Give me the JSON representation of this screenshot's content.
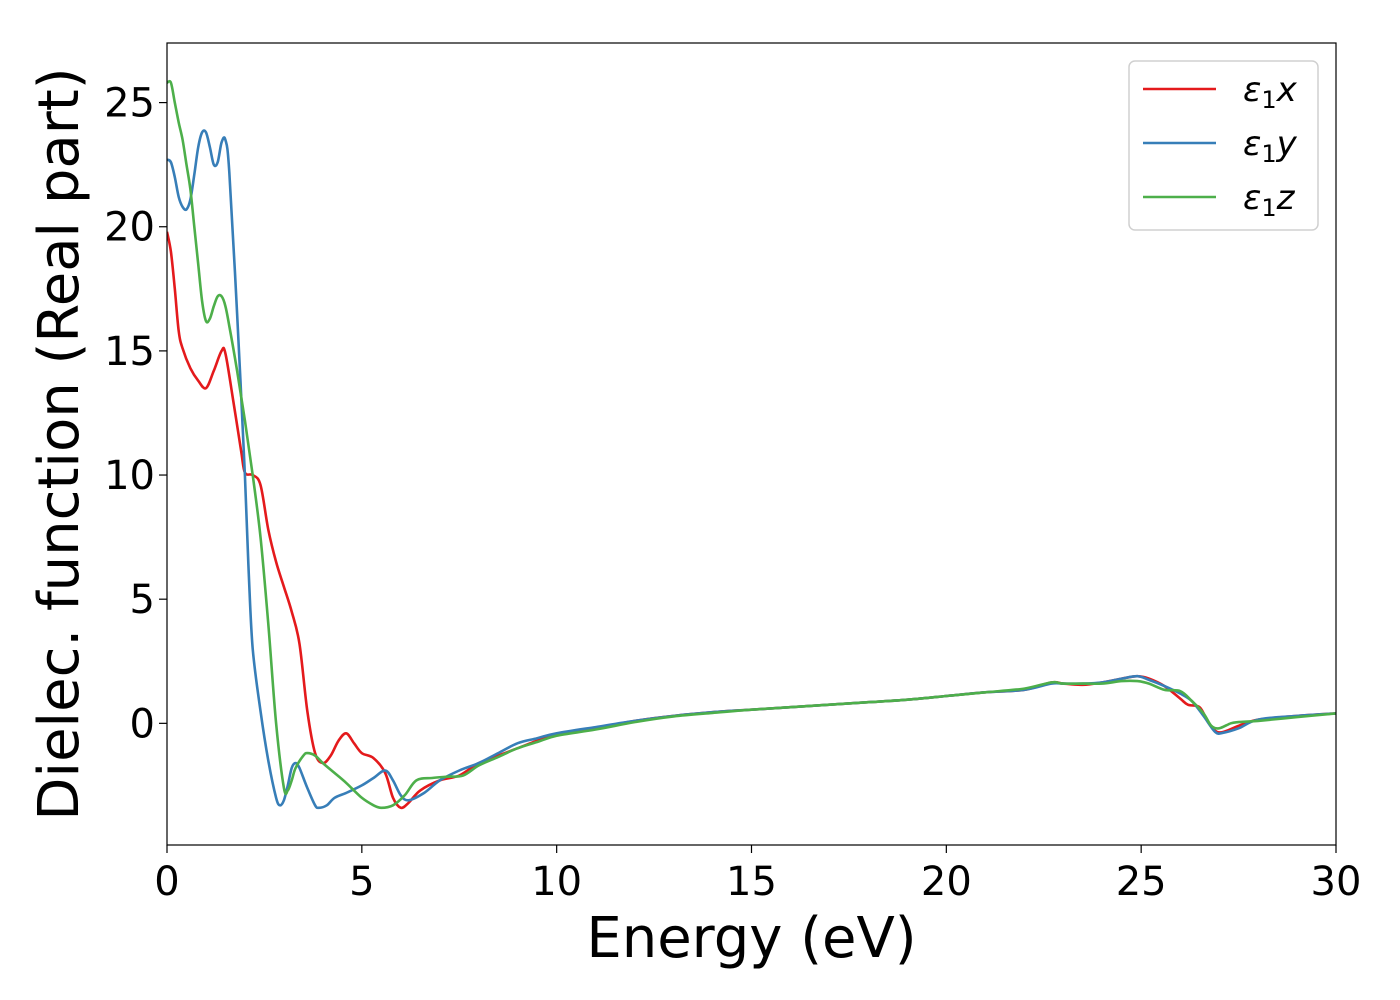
{
  "chart_data": {
    "type": "line",
    "xlabel": "Energy (eV)",
    "ylabel": "Dielec. function (Real part)",
    "xlim": [
      0,
      30
    ],
    "ylim": [
      -4.9,
      27.4
    ],
    "xticks": [
      "0",
      "5",
      "10",
      "15",
      "20",
      "25",
      "30"
    ],
    "yticks": [
      "0",
      "5",
      "10",
      "15",
      "20",
      "25"
    ],
    "grid": false,
    "legend_position": "top-right",
    "series": [
      {
        "name": "ε1x",
        "legend": {
          "base": "ε",
          "sub": "1",
          "suffix": "x"
        },
        "color": "#e41a1c",
        "points": [
          [
            0,
            19.8
          ],
          [
            0.1,
            19.0
          ],
          [
            0.2,
            17.5
          ],
          [
            0.3,
            15.8
          ],
          [
            0.4,
            15.1
          ],
          [
            0.6,
            14.3
          ],
          [
            0.8,
            13.8
          ],
          [
            1.0,
            13.5
          ],
          [
            1.2,
            14.2
          ],
          [
            1.4,
            15.0
          ],
          [
            1.5,
            14.9
          ],
          [
            1.7,
            13.0
          ],
          [
            1.9,
            11.0
          ],
          [
            2.0,
            10.1
          ],
          [
            2.2,
            10.0
          ],
          [
            2.4,
            9.6
          ],
          [
            2.6,
            7.8
          ],
          [
            2.8,
            6.5
          ],
          [
            3.0,
            5.5
          ],
          [
            3.2,
            4.5
          ],
          [
            3.4,
            3.2
          ],
          [
            3.6,
            0.5
          ],
          [
            3.8,
            -1.2
          ],
          [
            4.0,
            -1.6
          ],
          [
            4.2,
            -1.3
          ],
          [
            4.4,
            -0.7
          ],
          [
            4.6,
            -0.4
          ],
          [
            4.8,
            -0.8
          ],
          [
            5.0,
            -1.2
          ],
          [
            5.3,
            -1.4
          ],
          [
            5.6,
            -2.0
          ],
          [
            5.8,
            -3.0
          ],
          [
            6.0,
            -3.4
          ],
          [
            6.2,
            -3.2
          ],
          [
            6.5,
            -2.7
          ],
          [
            7.0,
            -2.3
          ],
          [
            7.5,
            -2.1
          ],
          [
            8.0,
            -1.6
          ],
          [
            8.5,
            -1.3
          ],
          [
            9.0,
            -1.0
          ],
          [
            9.5,
            -0.7
          ],
          [
            10.0,
            -0.45
          ],
          [
            11.0,
            -0.2
          ],
          [
            12.0,
            0.1
          ],
          [
            13.0,
            0.3
          ],
          [
            14.0,
            0.45
          ],
          [
            15.0,
            0.55
          ],
          [
            16.0,
            0.65
          ],
          [
            17.0,
            0.75
          ],
          [
            18.0,
            0.85
          ],
          [
            19.0,
            0.95
          ],
          [
            20.0,
            1.1
          ],
          [
            21.0,
            1.25
          ],
          [
            22.0,
            1.35
          ],
          [
            22.7,
            1.65
          ],
          [
            23.0,
            1.6
          ],
          [
            23.5,
            1.55
          ],
          [
            24.0,
            1.65
          ],
          [
            24.5,
            1.8
          ],
          [
            24.9,
            1.9
          ],
          [
            25.2,
            1.8
          ],
          [
            25.6,
            1.5
          ],
          [
            26.0,
            1.0
          ],
          [
            26.2,
            0.75
          ],
          [
            26.5,
            0.65
          ],
          [
            26.7,
            0.1
          ],
          [
            26.9,
            -0.3
          ],
          [
            27.1,
            -0.35
          ],
          [
            27.5,
            -0.1
          ],
          [
            28.0,
            0.15
          ],
          [
            29.0,
            0.3
          ],
          [
            30.0,
            0.4
          ]
        ]
      },
      {
        "name": "ε1y",
        "legend": {
          "base": "ε",
          "sub": "1",
          "suffix": "y"
        },
        "color": "#377eb8",
        "points": [
          [
            0,
            22.7
          ],
          [
            0.1,
            22.6
          ],
          [
            0.2,
            22.0
          ],
          [
            0.3,
            21.2
          ],
          [
            0.4,
            20.8
          ],
          [
            0.5,
            20.7
          ],
          [
            0.6,
            21.1
          ],
          [
            0.7,
            22.1
          ],
          [
            0.8,
            23.2
          ],
          [
            0.9,
            23.8
          ],
          [
            1.0,
            23.8
          ],
          [
            1.1,
            23.2
          ],
          [
            1.2,
            22.5
          ],
          [
            1.3,
            22.6
          ],
          [
            1.4,
            23.4
          ],
          [
            1.5,
            23.5
          ],
          [
            1.6,
            22.2
          ],
          [
            1.8,
            16.5
          ],
          [
            2.0,
            10.0
          ],
          [
            2.1,
            6.0
          ],
          [
            2.2,
            3.0
          ],
          [
            2.4,
            0.5
          ],
          [
            2.6,
            -1.5
          ],
          [
            2.8,
            -3.0
          ],
          [
            2.9,
            -3.3
          ],
          [
            3.0,
            -3.1
          ],
          [
            3.1,
            -2.5
          ],
          [
            3.2,
            -1.8
          ],
          [
            3.3,
            -1.6
          ],
          [
            3.4,
            -1.8
          ],
          [
            3.6,
            -2.6
          ],
          [
            3.8,
            -3.3
          ],
          [
            3.9,
            -3.4
          ],
          [
            4.1,
            -3.3
          ],
          [
            4.3,
            -3.0
          ],
          [
            4.6,
            -2.8
          ],
          [
            5.0,
            -2.5
          ],
          [
            5.3,
            -2.2
          ],
          [
            5.6,
            -1.9
          ],
          [
            5.8,
            -2.3
          ],
          [
            6.0,
            -2.9
          ],
          [
            6.2,
            -3.1
          ],
          [
            6.6,
            -2.8
          ],
          [
            7.0,
            -2.3
          ],
          [
            7.5,
            -1.9
          ],
          [
            8.0,
            -1.6
          ],
          [
            8.5,
            -1.2
          ],
          [
            9.0,
            -0.8
          ],
          [
            9.5,
            -0.6
          ],
          [
            10.0,
            -0.4
          ],
          [
            11.0,
            -0.15
          ],
          [
            12.0,
            0.1
          ],
          [
            13.0,
            0.3
          ],
          [
            14.0,
            0.45
          ],
          [
            15.0,
            0.55
          ],
          [
            16.0,
            0.65
          ],
          [
            17.0,
            0.75
          ],
          [
            18.0,
            0.85
          ],
          [
            19.0,
            0.95
          ],
          [
            20.0,
            1.1
          ],
          [
            21.0,
            1.25
          ],
          [
            22.0,
            1.35
          ],
          [
            22.7,
            1.6
          ],
          [
            23.0,
            1.6
          ],
          [
            23.5,
            1.6
          ],
          [
            24.0,
            1.65
          ],
          [
            24.5,
            1.8
          ],
          [
            24.9,
            1.9
          ],
          [
            25.2,
            1.75
          ],
          [
            25.6,
            1.5
          ],
          [
            26.0,
            1.2
          ],
          [
            26.3,
            0.9
          ],
          [
            26.6,
            0.3
          ],
          [
            26.9,
            -0.35
          ],
          [
            27.1,
            -0.38
          ],
          [
            27.5,
            -0.2
          ],
          [
            28.0,
            0.15
          ],
          [
            29.0,
            0.3
          ],
          [
            30.0,
            0.4
          ]
        ]
      },
      {
        "name": "ε1z",
        "legend": {
          "base": "ε",
          "sub": "1",
          "suffix": "z"
        },
        "color": "#4daf4a",
        "points": [
          [
            0,
            25.8
          ],
          [
            0.1,
            25.8
          ],
          [
            0.2,
            25.0
          ],
          [
            0.3,
            24.2
          ],
          [
            0.4,
            23.5
          ],
          [
            0.5,
            22.5
          ],
          [
            0.6,
            21.5
          ],
          [
            0.7,
            20.0
          ],
          [
            0.8,
            18.5
          ],
          [
            0.9,
            17.0
          ],
          [
            1.0,
            16.2
          ],
          [
            1.1,
            16.3
          ],
          [
            1.2,
            16.8
          ],
          [
            1.3,
            17.2
          ],
          [
            1.4,
            17.2
          ],
          [
            1.5,
            16.8
          ],
          [
            1.6,
            16.0
          ],
          [
            1.8,
            14.2
          ],
          [
            2.0,
            12.2
          ],
          [
            2.2,
            10.0
          ],
          [
            2.4,
            7.5
          ],
          [
            2.6,
            4.0
          ],
          [
            2.8,
            0.0
          ],
          [
            3.0,
            -2.6
          ],
          [
            3.1,
            -2.7
          ],
          [
            3.2,
            -2.3
          ],
          [
            3.3,
            -1.8
          ],
          [
            3.5,
            -1.3
          ],
          [
            3.6,
            -1.2
          ],
          [
            3.8,
            -1.3
          ],
          [
            4.0,
            -1.6
          ],
          [
            4.3,
            -2.0
          ],
          [
            4.6,
            -2.4
          ],
          [
            5.0,
            -3.0
          ],
          [
            5.3,
            -3.3
          ],
          [
            5.5,
            -3.4
          ],
          [
            5.8,
            -3.3
          ],
          [
            6.1,
            -2.9
          ],
          [
            6.4,
            -2.3
          ],
          [
            6.8,
            -2.2
          ],
          [
            7.2,
            -2.15
          ],
          [
            7.6,
            -2.1
          ],
          [
            8.0,
            -1.7
          ],
          [
            8.5,
            -1.35
          ],
          [
            9.0,
            -1.0
          ],
          [
            9.5,
            -0.75
          ],
          [
            10.0,
            -0.5
          ],
          [
            11.0,
            -0.25
          ],
          [
            12.0,
            0.05
          ],
          [
            13.0,
            0.28
          ],
          [
            14.0,
            0.42
          ],
          [
            15.0,
            0.55
          ],
          [
            16.0,
            0.65
          ],
          [
            17.0,
            0.75
          ],
          [
            18.0,
            0.85
          ],
          [
            19.0,
            0.95
          ],
          [
            20.0,
            1.1
          ],
          [
            21.0,
            1.25
          ],
          [
            22.0,
            1.4
          ],
          [
            22.7,
            1.65
          ],
          [
            23.0,
            1.6
          ],
          [
            23.5,
            1.6
          ],
          [
            24.0,
            1.6
          ],
          [
            24.5,
            1.7
          ],
          [
            24.9,
            1.7
          ],
          [
            25.2,
            1.6
          ],
          [
            25.6,
            1.35
          ],
          [
            26.0,
            1.3
          ],
          [
            26.3,
            0.9
          ],
          [
            26.6,
            0.4
          ],
          [
            26.8,
            -0.1
          ],
          [
            27.0,
            -0.2
          ],
          [
            27.3,
            0.0
          ],
          [
            27.5,
            0.05
          ],
          [
            28.0,
            0.1
          ],
          [
            29.0,
            0.25
          ],
          [
            30.0,
            0.4
          ]
        ]
      }
    ]
  }
}
